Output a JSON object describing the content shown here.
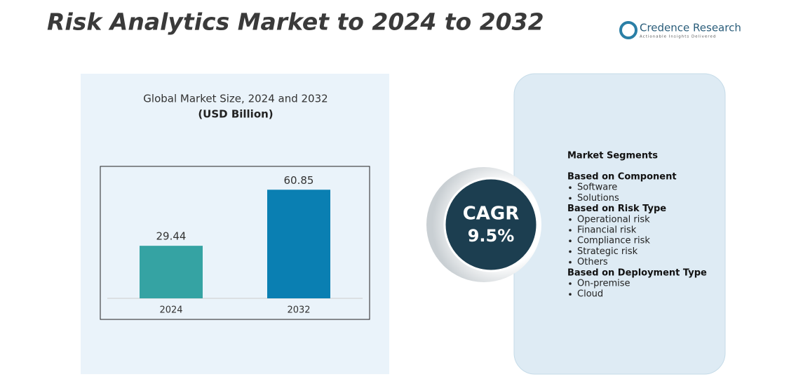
{
  "header": {
    "title": "Risk Analytics Market to 2024 to 2032",
    "brand": "Credence Research",
    "tagline": "Actionable Insights Delivered"
  },
  "chart_data": {
    "type": "bar",
    "title": "Global Market Size, 2024 and 2032",
    "subtitle": "(USD Billion)",
    "categories": [
      "2024",
      "2032"
    ],
    "values": [
      29.44,
      60.85
    ],
    "colors": [
      "#35a3a3",
      "#0a7fb2"
    ],
    "ylim": [
      0,
      70
    ]
  },
  "cagr": {
    "label": "CAGR",
    "value": "9.5%"
  },
  "segments": {
    "title": "Market Segments",
    "groups": [
      {
        "heading": "Based on Component",
        "items": [
          "Software",
          "Solutions"
        ]
      },
      {
        "heading": "Based on Risk Type",
        "items": [
          "Operational risk",
          "Financial risk",
          "Compliance risk",
          "Strategic risk",
          "Others"
        ]
      },
      {
        "heading": "Based on Deployment Type",
        "items": [
          "On-premise",
          "Cloud"
        ]
      }
    ]
  }
}
